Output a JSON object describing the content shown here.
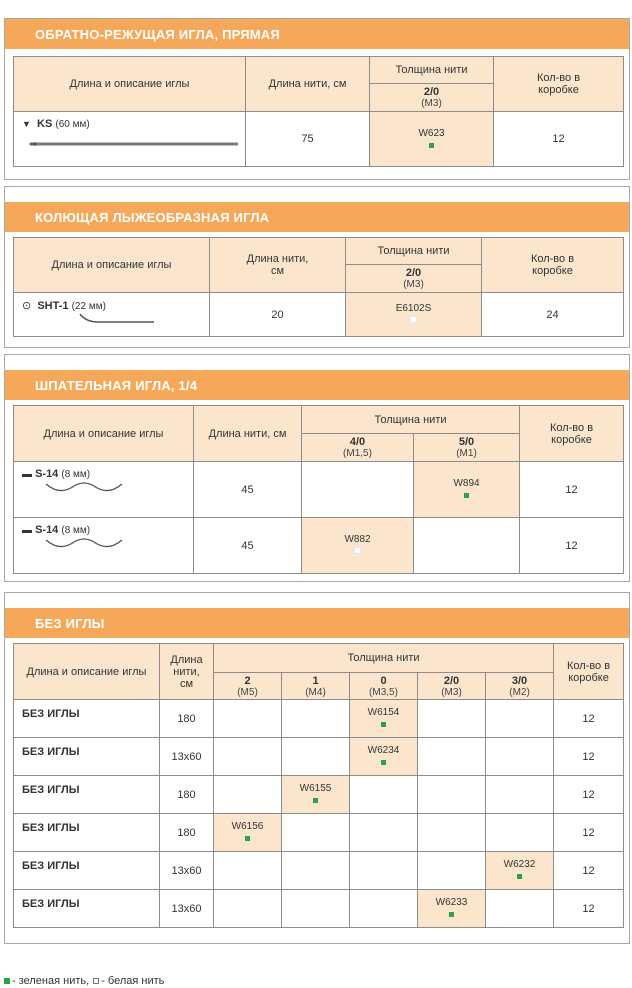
{
  "colors": {
    "banner": "#f5a85a",
    "header_fill": "#fbe6cd",
    "green_thread": "#2da24a",
    "white_thread": "#ffffff"
  },
  "sections": [
    {
      "title": "ОБРАТНО-РЕЖУЩАЯ ИГЛА, ПРЯМАЯ",
      "headers": {
        "needle": "Длина и описание иглы",
        "length": "Длина нити, см",
        "thickness": "Толщина нити",
        "count": "Кол-во в коробке"
      },
      "sizes": [
        {
          "gauge": "2/0",
          "metric": "(M3)"
        }
      ],
      "rows": [
        {
          "icon": "triangle-down-icon",
          "name": "KS",
          "size": "(60 мм)",
          "length": "75",
          "codes": [
            "W623"
          ],
          "dots": [
            "green"
          ],
          "count": "12"
        }
      ]
    },
    {
      "title": "КОЛЮЩАЯ ЛЫЖЕОБРАЗНАЯ ИГЛА",
      "headers": {
        "needle": "Длина и описание иглы",
        "length": "Длина нити, см",
        "thickness": "Толщина нити",
        "count": "Кол-во в коробке"
      },
      "sizes": [
        {
          "gauge": "2/0",
          "metric": "(M3)"
        }
      ],
      "rows": [
        {
          "icon": "circle-dot-icon",
          "name": "SHT-1",
          "size": "(22 мм)",
          "length": "20",
          "codes": [
            "E6102S"
          ],
          "dots": [
            "white"
          ],
          "count": "24"
        }
      ]
    },
    {
      "title": "ШПАТЕЛЬНАЯ ИГЛА, 1/4",
      "headers": {
        "needle": "Длина и описание иглы",
        "length": "Длина нити, см",
        "thickness": "Толщина нити",
        "count": "Кол-во в коробке"
      },
      "sizes": [
        {
          "gauge": "4/0",
          "metric": "(M1,5)"
        },
        {
          "gauge": "5/0",
          "metric": "(M1)"
        }
      ],
      "rows": [
        {
          "icon": "spatula-icon",
          "name": "S-14",
          "size": "(8 мм)",
          "length": "45",
          "codes": [
            "",
            "W894"
          ],
          "dots": [
            "",
            "green"
          ],
          "count": "12"
        },
        {
          "icon": "spatula-icon",
          "name": "S-14",
          "size": "(8 мм)",
          "length": "45",
          "codes": [
            "W882",
            ""
          ],
          "dots": [
            "white",
            ""
          ],
          "count": "12"
        }
      ]
    },
    {
      "title": "БЕЗ ИГЛЫ",
      "headers": {
        "needle": "Длина и описание иглы",
        "length": "Длина нити, см",
        "thickness": "Толщина нити",
        "count": "Кол-во в коробке"
      },
      "sizes": [
        {
          "gauge": "2",
          "metric": "(M5)"
        },
        {
          "gauge": "1",
          "metric": "(M4)"
        },
        {
          "gauge": "0",
          "metric": "(M3,5)"
        },
        {
          "gauge": "2/0",
          "metric": "(M3)"
        },
        {
          "gauge": "3/0",
          "metric": "(M2)"
        }
      ],
      "rows": [
        {
          "name": "БЕЗ ИГЛЫ",
          "length": "180",
          "codes": [
            "",
            "",
            "W6154",
            "",
            ""
          ],
          "dots": [
            "",
            "",
            "green",
            "",
            ""
          ],
          "count": "12"
        },
        {
          "name": "БЕЗ ИГЛЫ",
          "length": "13х60",
          "codes": [
            "",
            "",
            "W6234",
            "",
            ""
          ],
          "dots": [
            "",
            "",
            "green",
            "",
            ""
          ],
          "count": "12"
        },
        {
          "name": "БЕЗ ИГЛЫ",
          "length": "180",
          "codes": [
            "",
            "W6155",
            "",
            "",
            ""
          ],
          "dots": [
            "",
            "green",
            "",
            "",
            ""
          ],
          "count": "12"
        },
        {
          "name": "БЕЗ ИГЛЫ",
          "length": "180",
          "codes": [
            "W6156",
            "",
            "",
            "",
            ""
          ],
          "dots": [
            "green",
            "",
            "",
            "",
            ""
          ],
          "count": "12"
        },
        {
          "name": "БЕЗ ИГЛЫ",
          "length": "13х60",
          "codes": [
            "",
            "",
            "",
            "",
            "W6232"
          ],
          "dots": [
            "",
            "",
            "",
            "",
            "green"
          ],
          "count": "12"
        },
        {
          "name": "БЕЗ ИГЛЫ",
          "length": "13х60",
          "codes": [
            "",
            "",
            "",
            "W6233",
            ""
          ],
          "dots": [
            "",
            "",
            "",
            "green",
            ""
          ],
          "count": "12"
        }
      ]
    }
  ],
  "legend": {
    "green": "- зеленая нить,",
    "white": "- белая нить"
  }
}
